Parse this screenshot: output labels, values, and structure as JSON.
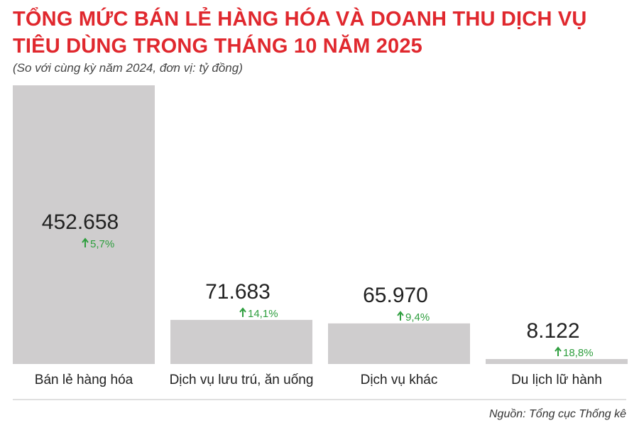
{
  "title": "TỔNG MỨC BÁN LẺ HÀNG HÓA VÀ DOANH THU DỊCH VỤ TIÊU DÙNG TRONG THÁNG 10 NĂM 2025",
  "subtitle": "(So với cùng kỳ năm 2024, đơn vị: tỷ đồng)",
  "source": "Nguồn: Tổng cục Thống kê",
  "colors": {
    "bar": "#cfcdce",
    "title": "#e0282e",
    "increase": "#2e9e3e"
  },
  "chart_data": {
    "type": "bar",
    "title": "TỔNG MỨC BÁN LẺ HÀNG HÓA VÀ DOANH THU DỊCH VỤ TIÊU DÙNG TRONG THÁNG 10 NĂM 2025",
    "categories": [
      "Bán lẻ hàng hóa",
      "Dịch vụ lưu trú, ăn uống",
      "Dịch vụ khác",
      "Du lịch lữ hành"
    ],
    "values": [
      452658,
      71683,
      65970,
      8122
    ],
    "value_labels": [
      "452.658",
      "71.683",
      "65.970",
      "8.122"
    ],
    "change_labels": [
      "5,7%",
      "14,1%",
      "9,4%",
      "18,8%"
    ],
    "change_icon": "up-arrow-icon",
    "xlabel": "",
    "ylabel": "",
    "grid": false,
    "legend": "none"
  }
}
